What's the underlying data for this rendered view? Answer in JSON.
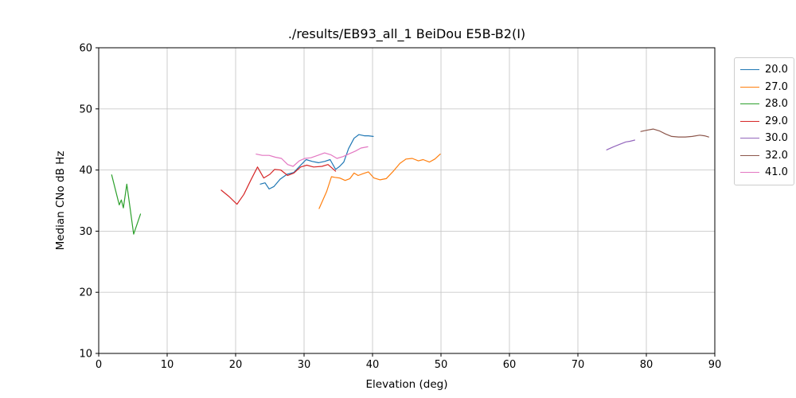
{
  "figure": {
    "background": "#ffffff",
    "plot_border_color": "#000000"
  },
  "chart_data": {
    "type": "line",
    "title": "./results/EB93_all_1 BeiDou E5B-B2(I)",
    "xlabel": "Elevation (deg)",
    "ylabel": "Median CNo dB Hz",
    "xlim": [
      0,
      90
    ],
    "ylim": [
      10,
      60
    ],
    "xticks": [
      0,
      10,
      20,
      30,
      40,
      50,
      60,
      70,
      80,
      90
    ],
    "yticks": [
      10,
      20,
      30,
      40,
      50,
      60
    ],
    "grid": true,
    "grid_color": "#c9c9c9",
    "legend_position": "outside-right-top",
    "series": [
      {
        "name": "20.0",
        "color": "#1f77b4",
        "points": [
          [
            23.6,
            37.7
          ],
          [
            24.3,
            37.9
          ],
          [
            24.9,
            36.9
          ],
          [
            25.6,
            37.3
          ],
          [
            26.5,
            38.5
          ],
          [
            27.5,
            39.3
          ],
          [
            28.5,
            39.6
          ],
          [
            29.5,
            40.8
          ],
          [
            30.3,
            41.7
          ],
          [
            31.2,
            41.4
          ],
          [
            32.1,
            41.2
          ],
          [
            33.0,
            41.4
          ],
          [
            33.8,
            41.7
          ],
          [
            34.6,
            40.1
          ],
          [
            35.2,
            40.6
          ],
          [
            35.8,
            41.3
          ],
          [
            36.5,
            43.5
          ],
          [
            37.3,
            45.2
          ],
          [
            38.0,
            45.8
          ],
          [
            38.8,
            45.6
          ],
          [
            39.4,
            45.6
          ],
          [
            40.1,
            45.5
          ]
        ]
      },
      {
        "name": "27.0",
        "color": "#ff7f0e",
        "points": [
          [
            32.2,
            33.7
          ],
          [
            33.3,
            36.5
          ],
          [
            34.0,
            38.9
          ],
          [
            34.5,
            38.8
          ],
          [
            35.2,
            38.7
          ],
          [
            36.0,
            38.3
          ],
          [
            36.7,
            38.6
          ],
          [
            37.3,
            39.5
          ],
          [
            37.9,
            39.1
          ],
          [
            38.6,
            39.4
          ],
          [
            39.4,
            39.7
          ],
          [
            40.2,
            38.7
          ],
          [
            41.1,
            38.4
          ],
          [
            42.0,
            38.6
          ],
          [
            43.1,
            39.9
          ],
          [
            44.0,
            41.1
          ],
          [
            44.9,
            41.8
          ],
          [
            45.8,
            41.9
          ],
          [
            46.7,
            41.5
          ],
          [
            47.4,
            41.7
          ],
          [
            48.3,
            41.3
          ],
          [
            49.1,
            41.8
          ],
          [
            49.9,
            42.6
          ]
        ]
      },
      {
        "name": "28.0",
        "color": "#2ca02c",
        "points": [
          [
            1.9,
            39.2
          ],
          [
            3.0,
            34.3
          ],
          [
            3.3,
            35.1
          ],
          [
            3.6,
            33.8
          ],
          [
            4.1,
            37.7
          ],
          [
            5.1,
            29.5
          ],
          [
            6.1,
            32.8
          ]
        ]
      },
      {
        "name": "29.0",
        "color": "#d62728",
        "points": [
          [
            17.9,
            36.7
          ],
          [
            19.0,
            35.7
          ],
          [
            20.2,
            34.4
          ],
          [
            21.2,
            36.0
          ],
          [
            22.2,
            38.3
          ],
          [
            23.2,
            40.5
          ],
          [
            24.1,
            38.7
          ],
          [
            25.0,
            39.3
          ],
          [
            25.7,
            40.1
          ],
          [
            26.6,
            40.0
          ],
          [
            27.6,
            39.1
          ],
          [
            28.5,
            39.5
          ],
          [
            29.5,
            40.5
          ],
          [
            30.4,
            40.8
          ],
          [
            31.4,
            40.5
          ],
          [
            32.6,
            40.6
          ],
          [
            33.5,
            40.9
          ],
          [
            34.6,
            39.8
          ]
        ]
      },
      {
        "name": "30.0",
        "color": "#9467bd",
        "points": [
          [
            74.2,
            43.3
          ],
          [
            75.2,
            43.8
          ],
          [
            76.1,
            44.2
          ],
          [
            77.0,
            44.6
          ],
          [
            77.6,
            44.7
          ],
          [
            78.3,
            44.9
          ]
        ]
      },
      {
        "name": "32.0",
        "color": "#8c564b",
        "points": [
          [
            79.2,
            46.3
          ],
          [
            80.0,
            46.5
          ],
          [
            81.0,
            46.7
          ],
          [
            81.9,
            46.4
          ],
          [
            82.8,
            45.9
          ],
          [
            83.7,
            45.5
          ],
          [
            84.7,
            45.4
          ],
          [
            85.7,
            45.4
          ],
          [
            86.7,
            45.5
          ],
          [
            87.8,
            45.7
          ],
          [
            88.5,
            45.6
          ],
          [
            89.1,
            45.4
          ]
        ]
      },
      {
        "name": "41.0",
        "color": "#e377c2",
        "points": [
          [
            23.0,
            42.6
          ],
          [
            23.9,
            42.4
          ],
          [
            24.9,
            42.4
          ],
          [
            25.8,
            42.1
          ],
          [
            26.7,
            41.9
          ],
          [
            27.6,
            40.9
          ],
          [
            28.4,
            40.6
          ],
          [
            29.3,
            41.5
          ],
          [
            30.1,
            41.9
          ],
          [
            31.0,
            42.0
          ],
          [
            32.0,
            42.4
          ],
          [
            33.0,
            42.8
          ],
          [
            33.9,
            42.5
          ],
          [
            34.8,
            41.9
          ],
          [
            35.7,
            42.2
          ],
          [
            36.5,
            42.6
          ],
          [
            37.5,
            43.1
          ],
          [
            38.3,
            43.6
          ],
          [
            39.3,
            43.8
          ]
        ]
      }
    ]
  }
}
